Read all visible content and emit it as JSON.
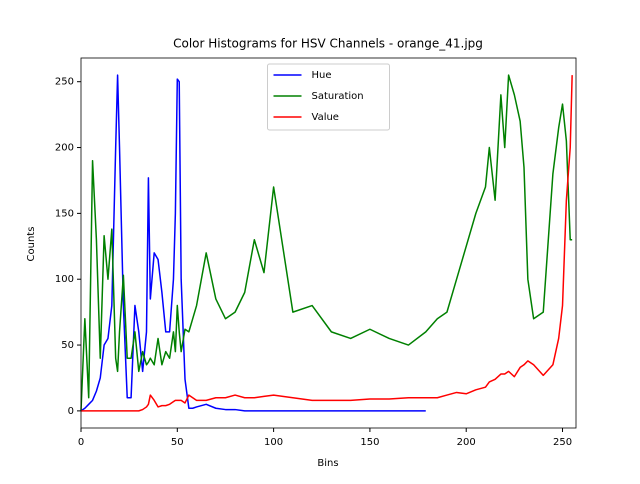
{
  "chart_data": {
    "type": "line",
    "title": "Color Histograms for HSV Channels - orange_41.jpg",
    "x_label": "Bins",
    "y_label": "Counts",
    "x": [
      0,
      2,
      4,
      6,
      8,
      10,
      12,
      14,
      16,
      18,
      19,
      20,
      22,
      24,
      26,
      28,
      30,
      32,
      34,
      35,
      36,
      38,
      40,
      42,
      44,
      46,
      48,
      49,
      50,
      51,
      52,
      54,
      56,
      58,
      60,
      65,
      70,
      75,
      80,
      85,
      90,
      95,
      100,
      110,
      120,
      130,
      140,
      150,
      160,
      170,
      179,
      185,
      190,
      195,
      200,
      205,
      210,
      212,
      215,
      218,
      220,
      222,
      225,
      228,
      230,
      232,
      235,
      240,
      245,
      248,
      250,
      252,
      254,
      255
    ],
    "series": [
      {
        "name": "Hue",
        "color": "#0000ff",
        "values": [
          0,
          2,
          5,
          8,
          15,
          25,
          50,
          55,
          80,
          200,
          255,
          200,
          80,
          10,
          10,
          80,
          60,
          30,
          60,
          177,
          85,
          120,
          115,
          90,
          60,
          60,
          100,
          150,
          252,
          250,
          100,
          24,
          2,
          2,
          3,
          5,
          2,
          1,
          1,
          0,
          0,
          0,
          0,
          0,
          0,
          0,
          0,
          0,
          0,
          0,
          0,
          null,
          null,
          null,
          null,
          null,
          null,
          null,
          null,
          null,
          null,
          null,
          null,
          null,
          null,
          null,
          null,
          null,
          null,
          null,
          null,
          null,
          null,
          null
        ]
      },
      {
        "name": "Saturation",
        "color": "#008000",
        "values": [
          0,
          70,
          10,
          190,
          130,
          40,
          133,
          100,
          138,
          40,
          30,
          60,
          103,
          40,
          40,
          60,
          30,
          45,
          35,
          37,
          40,
          35,
          55,
          35,
          45,
          40,
          60,
          45,
          80,
          60,
          45,
          62,
          60,
          70,
          80,
          120,
          85,
          70,
          75,
          90,
          130,
          105,
          170,
          75,
          80,
          60,
          55,
          62,
          55,
          50,
          60,
          70,
          75,
          100,
          125,
          150,
          170,
          200,
          160,
          240,
          200,
          255,
          240,
          220,
          185,
          100,
          70,
          75,
          180,
          215,
          233,
          205,
          130,
          130
        ]
      },
      {
        "name": "Value",
        "color": "#ff0000",
        "values": [
          0,
          0,
          0,
          0,
          0,
          0,
          0,
          0,
          0,
          0,
          0,
          0,
          0,
          0,
          0,
          0,
          0,
          1,
          3,
          5,
          12,
          8,
          3,
          4,
          4,
          5,
          7,
          8,
          8,
          8,
          8,
          6,
          12,
          10,
          8,
          8,
          10,
          10,
          12,
          10,
          10,
          11,
          12,
          10,
          8,
          8,
          8,
          9,
          9,
          10,
          10,
          10,
          12,
          14,
          13,
          16,
          18,
          22,
          24,
          28,
          28,
          30,
          26,
          33,
          35,
          38,
          35,
          27,
          35,
          55,
          80,
          160,
          200,
          255
        ]
      }
    ],
    "xlim": [
      0,
      257
    ],
    "ylim": [
      -13,
      268
    ],
    "xticks": [
      0,
      50,
      100,
      150,
      200,
      250
    ],
    "yticks": [
      0,
      50,
      100,
      150,
      200,
      250
    ],
    "legend": "upper center"
  }
}
